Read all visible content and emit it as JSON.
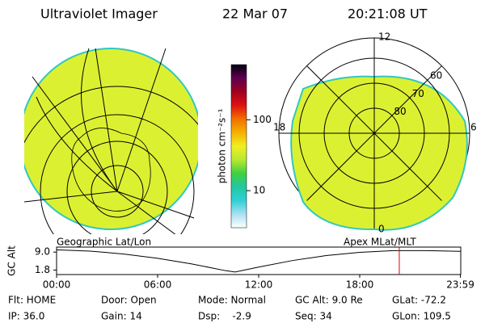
{
  "header": {
    "instrument": "Ultraviolet Imager",
    "date": "22 Mar 07",
    "time": "20:21:08 UT"
  },
  "colorbar": {
    "label": "photon cm⁻²s⁻¹",
    "scale": "log",
    "lim": [
      3,
      600
    ],
    "ticks": [
      10,
      100
    ],
    "colors": [
      "#ffffff",
      "#a8e0f0",
      "#30d0d8",
      "#20c8a0",
      "#40d040",
      "#b8e830",
      "#f0f020",
      "#f8b000",
      "#f07000",
      "#e01010",
      "#a00020",
      "#600050",
      "#000010"
    ]
  },
  "left_map": {
    "label": "Geographic Lat/Lon"
  },
  "right_map": {
    "label": "Apex MLat/MLT",
    "lat_rings": [
      80,
      70,
      60
    ],
    "mlt_labels": [
      12,
      18,
      6,
      0
    ]
  },
  "chart_data": {
    "type": "line",
    "ylabel": "GC Alt",
    "x": [
      0,
      2,
      4,
      6,
      8,
      10,
      10.6,
      12,
      14,
      16,
      18,
      20,
      22,
      23.98
    ],
    "values": [
      9.9,
      9.4,
      8.2,
      6.5,
      4.3,
      1.6,
      1.0,
      3.0,
      5.6,
      7.6,
      8.9,
      9.6,
      9.6,
      9.3
    ],
    "color": "#000000",
    "marker_color": "#e00000",
    "current_time": 20.35,
    "xlim": [
      0,
      24
    ],
    "ylim": [
      0,
      11
    ],
    "xticks": [
      {
        "value": 0,
        "label": "00:00"
      },
      {
        "value": 6,
        "label": "06:00"
      },
      {
        "value": 12,
        "label": "12:00"
      },
      {
        "value": 18,
        "label": "18:00"
      },
      {
        "value": 23.98,
        "label": "23:59"
      }
    ],
    "yticks": [
      {
        "value": 9,
        "label": "9.0"
      },
      {
        "value": 1.8,
        "label": "1.8"
      }
    ]
  },
  "status": [
    [
      "Flt: HOME",
      "Door: Open",
      "Mode: Normal",
      "GC Alt: 9.0 Re",
      "GLat: -72.2"
    ],
    [
      "IP: 36.0",
      "Gain: 14",
      "Dsp:    -2.9",
      "Seq: 34",
      "GLon: 109.5"
    ]
  ]
}
